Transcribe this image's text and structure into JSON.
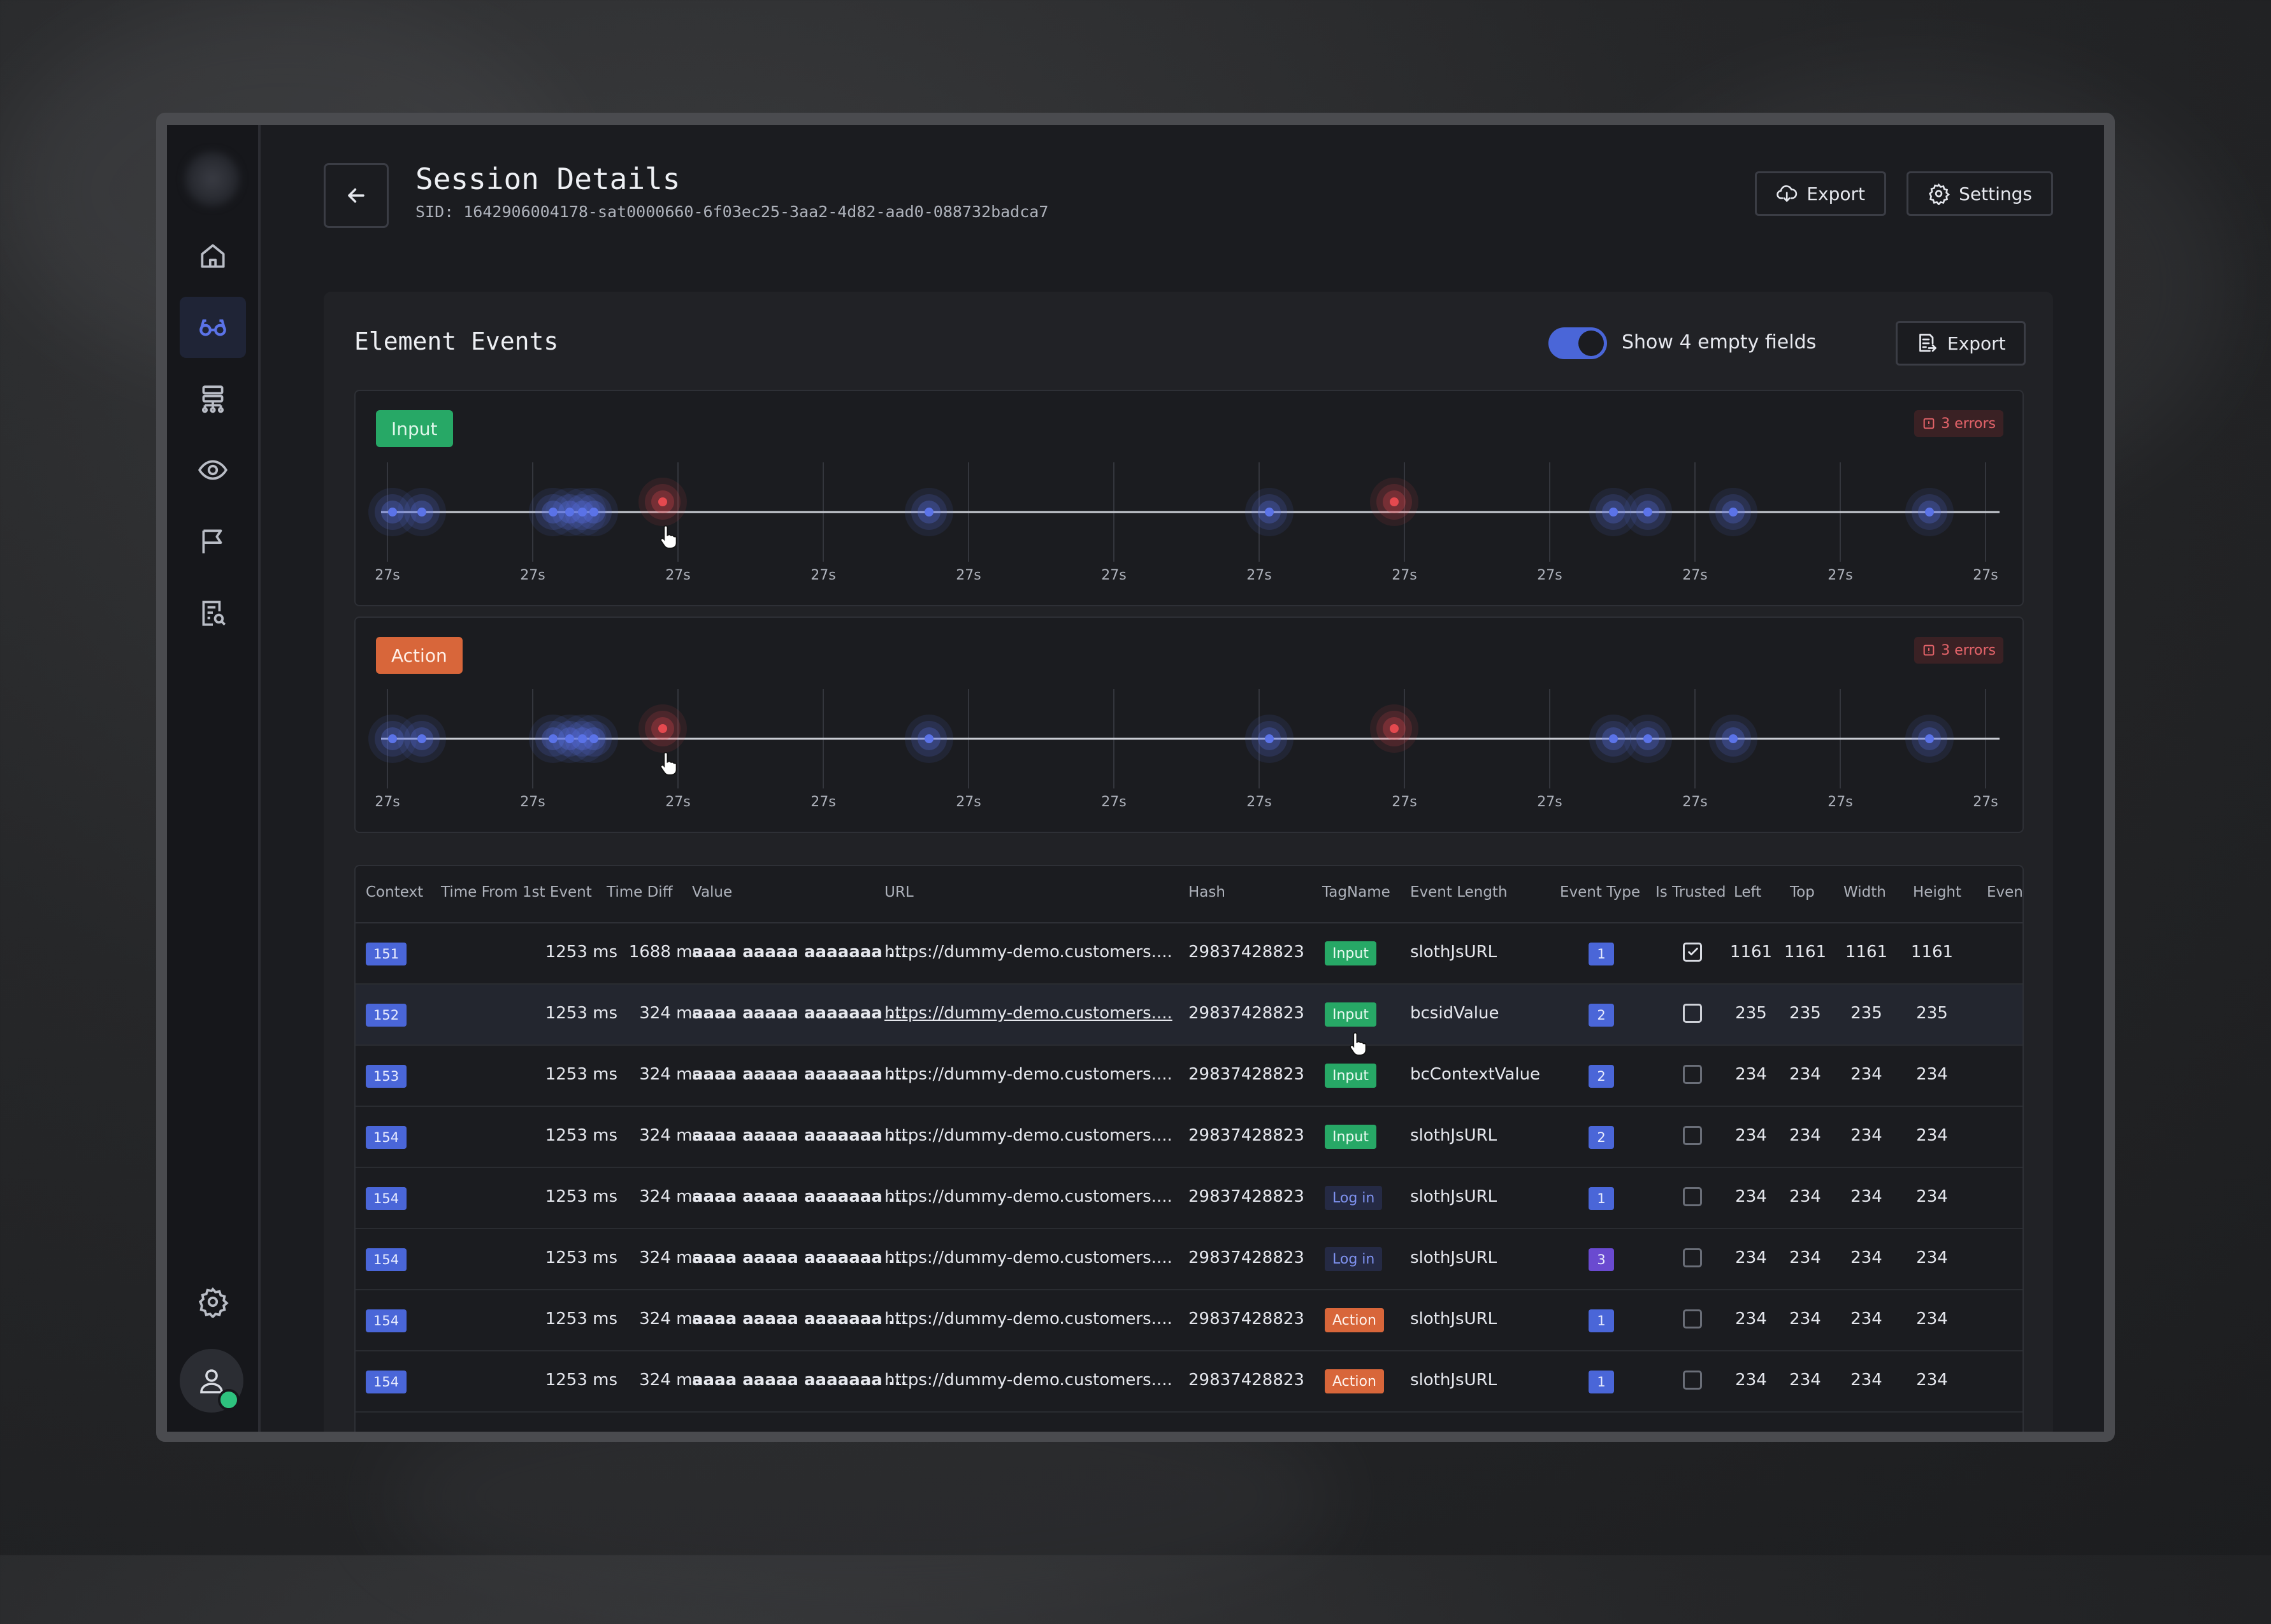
{
  "header": {
    "title": "Session Details",
    "sid": "SID: 1642906004178-sat0000660-6f03ec25-3aa2-4d82-aad0-088732badca7",
    "export_label": "Export",
    "settings_label": "Settings"
  },
  "sidebar": {
    "items": [
      {
        "name": "home",
        "icon": "home-icon"
      },
      {
        "name": "sessions",
        "icon": "glasses-icon",
        "active": true
      },
      {
        "name": "hierarchy",
        "icon": "sitemap-icon"
      },
      {
        "name": "watch",
        "icon": "eye-icon"
      },
      {
        "name": "flags",
        "icon": "flag-icon"
      },
      {
        "name": "reports",
        "icon": "report-search-icon"
      }
    ],
    "settings_icon": "gear-icon",
    "avatar_icon": "user-icon",
    "online_color": "#2ec27e"
  },
  "panel": {
    "title": "Element Events",
    "toggle_label": "Show 4 empty fields",
    "toggle_on": true,
    "export_label": "Export"
  },
  "timelines": [
    {
      "tag": "Input",
      "errors": "3 errors"
    },
    {
      "tag": "Action",
      "errors": "3 errors"
    }
  ],
  "tick_label": "27s",
  "table": {
    "columns": [
      "Context",
      "Time From 1st Event",
      "Time Diff",
      "Value",
      "URL",
      "Hash",
      "TagName",
      "Event Length",
      "Event Type",
      "Is Trusted",
      "Left",
      "Top",
      "Width",
      "Height",
      "Event"
    ],
    "rows": [
      {
        "context": "151",
        "time_from": "1253 ms",
        "time_diff": "1688 ms",
        "value": "aaaa aaaaa aaaaaaa ...",
        "url": "https://dummy-demo.customers....",
        "hash": "29837428823",
        "tagname": "Input",
        "event_length": "slothJsURL",
        "event_type": "1",
        "trusted": true,
        "left": "1161",
        "top": "1161",
        "width": "1161",
        "height": "1161"
      },
      {
        "context": "152",
        "time_from": "1253 ms",
        "time_diff": "324 ms",
        "value": "aaaa aaaaa aaaaaaa ...",
        "url": "https://dummy-demo.customers....",
        "hash": "29837428823",
        "tagname": "Input",
        "event_length": "bcsidValue",
        "event_type": "2",
        "trusted": false,
        "left": "235",
        "top": "235",
        "width": "235",
        "height": "235"
      },
      {
        "context": "153",
        "time_from": "1253 ms",
        "time_diff": "324 ms",
        "value": "aaaa aaaaa aaaaaaa ...",
        "url": "https://dummy-demo.customers....",
        "hash": "29837428823",
        "tagname": "Input",
        "event_length": "bcContextValue",
        "event_type": "2",
        "trusted": false,
        "left": "234",
        "top": "234",
        "width": "234",
        "height": "234"
      },
      {
        "context": "154",
        "time_from": "1253 ms",
        "time_diff": "324 ms",
        "value": "aaaa aaaaa aaaaaaa ...",
        "url": "https://dummy-demo.customers....",
        "hash": "29837428823",
        "tagname": "Input",
        "event_length": "slothJsURL",
        "event_type": "2",
        "trusted": false,
        "left": "234",
        "top": "234",
        "width": "234",
        "height": "234"
      },
      {
        "context": "154",
        "time_from": "1253 ms",
        "time_diff": "324 ms",
        "value": "aaaa aaaaa aaaaaaa ...",
        "url": "https://dummy-demo.customers....",
        "hash": "29837428823",
        "tagname": "Log in",
        "event_length": "slothJsURL",
        "event_type": "1",
        "trusted": false,
        "left": "234",
        "top": "234",
        "width": "234",
        "height": "234"
      },
      {
        "context": "154",
        "time_from": "1253 ms",
        "time_diff": "324 ms",
        "value": "aaaa aaaaa aaaaaaa ...",
        "url": "https://dummy-demo.customers....",
        "hash": "29837428823",
        "tagname": "Log in",
        "event_length": "slothJsURL",
        "event_type": "3",
        "trusted": false,
        "left": "234",
        "top": "234",
        "width": "234",
        "height": "234"
      },
      {
        "context": "154",
        "time_from": "1253 ms",
        "time_diff": "324 ms",
        "value": "aaaa aaaaa aaaaaaa ...",
        "url": "https://dummy-demo.customers....",
        "hash": "29837428823",
        "tagname": "Action",
        "event_length": "slothJsURL",
        "event_type": "1",
        "trusted": false,
        "left": "234",
        "top": "234",
        "width": "234",
        "height": "234"
      },
      {
        "context": "154",
        "time_from": "1253 ms",
        "time_diff": "324 ms",
        "value": "aaaa aaaaa aaaaaaa ...",
        "url": "https://dummy-demo.customers....",
        "hash": "29837428823",
        "tagname": "Action",
        "event_length": "slothJsURL",
        "event_type": "1",
        "trusted": false,
        "left": "234",
        "top": "234",
        "width": "234",
        "height": "234"
      }
    ]
  },
  "colors": {
    "accent": "#4a66d8",
    "input_tag": "#27a866",
    "action_tag": "#d8663a",
    "error": "#e5646a",
    "event_dot": "#5b73e8",
    "error_dot": "#e5494f"
  }
}
